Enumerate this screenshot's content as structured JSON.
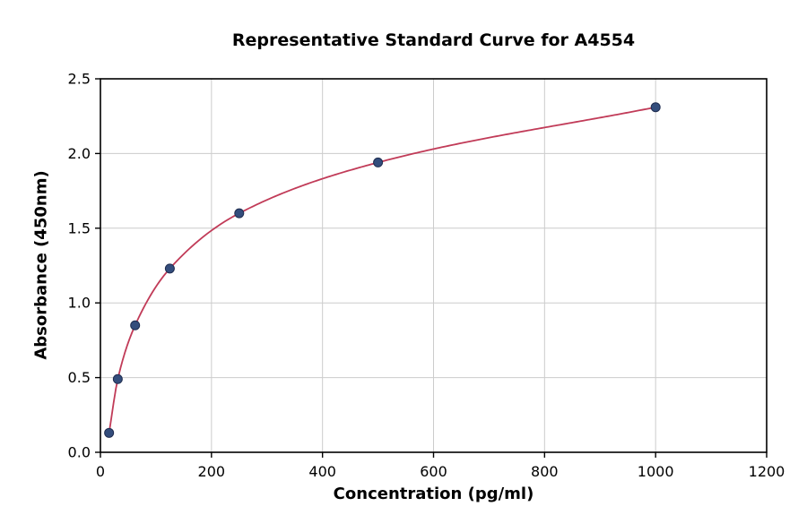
{
  "page": {
    "background_color": "#ffffff"
  },
  "chart_data": {
    "type": "scatter",
    "title": "Representative Standard Curve for A4554",
    "xlabel": "Concentration (pg/ml)",
    "ylabel": "Absorbance (450nm)",
    "xlim": [
      0,
      1200
    ],
    "ylim": [
      0,
      2.5
    ],
    "x_ticks": [
      0,
      200,
      400,
      600,
      800,
      1000,
      1200
    ],
    "x_tick_labels": [
      "0",
      "200",
      "400",
      "600",
      "800",
      "1000",
      "1200"
    ],
    "y_ticks": [
      0,
      0.5,
      1.0,
      1.5,
      2.0,
      2.5
    ],
    "y_tick_labels": [
      "0.0",
      "0.5",
      "1.0",
      "1.5",
      "2.0",
      "2.5"
    ],
    "grid": true,
    "legend": "none",
    "points": [
      {
        "x": 15.6,
        "y": 0.13
      },
      {
        "x": 31.25,
        "y": 0.49
      },
      {
        "x": 62.5,
        "y": 0.85
      },
      {
        "x": 125,
        "y": 1.23
      },
      {
        "x": 250,
        "y": 1.6
      },
      {
        "x": 500,
        "y": 1.94
      },
      {
        "x": 1000,
        "y": 2.31
      }
    ],
    "series": [
      {
        "name": "standard-curve-fit",
        "color": "#c13b58"
      }
    ],
    "style": {
      "curve_color": "#c13b58",
      "point_fill_color": "#334d7c",
      "point_edge_color": "#1f2d50",
      "grid_color": "#cccccc",
      "axis_color": "#000000",
      "tick_label_color": "#000000"
    }
  }
}
